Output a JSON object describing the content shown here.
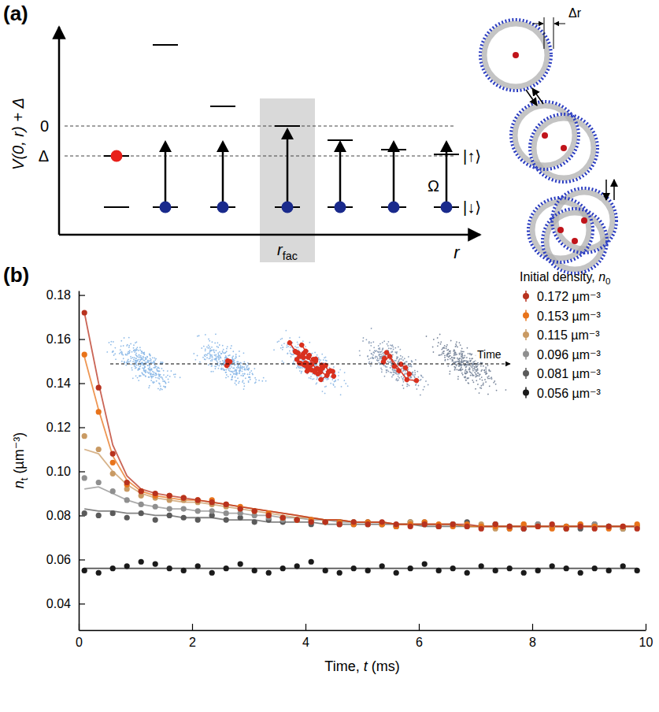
{
  "chart_data": [
    {
      "type": "diagram",
      "label": "(a)",
      "y_label": "V(0, r) + Δ",
      "x_label": "r",
      "level_labels": [
        "0",
        "Δ"
      ],
      "facilitation_label": {
        "base": "r",
        "sub": "fac"
      },
      "coupling_label": "Ω",
      "state_labels": [
        "|↑⟩",
        "|↓⟩"
      ],
      "shell_width_label": "Δr"
    },
    {
      "type": "scatter",
      "label": "(b)",
      "x_label": {
        "head": "Time, ",
        "base": "t",
        "tail": " (ms)"
      },
      "y_label": {
        "base": "n",
        "sub": "t",
        "tail": " (µm⁻³)"
      },
      "legend_title": {
        "head": "Initial density, ",
        "base": "n",
        "sub": "0"
      },
      "inset_label": "Time",
      "xlim": [
        0,
        10
      ],
      "xticks": [
        0,
        2,
        4,
        6,
        8,
        10
      ],
      "ylim": [
        0.028,
        0.182
      ],
      "yticks": [
        0.04,
        0.06,
        0.08,
        {
          "value": 0.1,
          "label": "0.10"
        },
        0.12,
        0.14,
        0.16,
        0.18
      ],
      "grid": false,
      "legend": "top-right",
      "marker": "circle",
      "x": [
        0.1,
        0.35,
        0.6,
        0.85,
        1.1,
        1.35,
        1.6,
        1.85,
        2.1,
        2.35,
        2.6,
        2.85,
        3.1,
        3.35,
        3.6,
        3.85,
        4.1,
        4.35,
        4.6,
        4.85,
        5.1,
        5.35,
        5.6,
        5.85,
        6.1,
        6.35,
        6.6,
        6.85,
        7.1,
        7.35,
        7.6,
        7.85,
        8.1,
        8.35,
        8.6,
        8.85,
        9.1,
        9.35,
        9.6,
        9.85
      ],
      "series": [
        {
          "name": "0.172 µm⁻³",
          "color": "#b8321e",
          "values": [
            0.172,
            0.138,
            0.108,
            0.095,
            0.091,
            0.09,
            0.089,
            0.088,
            0.087,
            0.086,
            0.085,
            0.083,
            0.082,
            0.08,
            0.079,
            0.078,
            0.077,
            0.077,
            0.076,
            0.077,
            0.076,
            0.077,
            0.076,
            0.075,
            0.076,
            0.075,
            0.076,
            0.075,
            0.074,
            0.076,
            0.075,
            0.074,
            0.075,
            0.076,
            0.074,
            0.075,
            0.074,
            0.075,
            0.075,
            0.074
          ],
          "fit": [
            0.172,
            0.14,
            0.112,
            0.098,
            0.092,
            0.09,
            0.089,
            0.088,
            0.087,
            0.086,
            0.085,
            0.084,
            0.083,
            0.082,
            0.081,
            0.08,
            0.079,
            0.078,
            0.078,
            0.077,
            0.077,
            0.077,
            0.076,
            0.076,
            0.076,
            0.076,
            0.076,
            0.076,
            0.075,
            0.075,
            0.075,
            0.075,
            0.075,
            0.075,
            0.075,
            0.075,
            0.075,
            0.075,
            0.075,
            0.075
          ]
        },
        {
          "name": "0.153 µm⁻³",
          "color": "#e8731a",
          "values": [
            0.153,
            0.127,
            0.104,
            0.094,
            0.091,
            0.089,
            0.089,
            0.088,
            0.087,
            0.087,
            0.085,
            0.084,
            0.082,
            0.081,
            0.079,
            0.078,
            0.078,
            0.077,
            0.077,
            0.076,
            0.077,
            0.076,
            0.075,
            0.076,
            0.077,
            0.076,
            0.075,
            0.076,
            0.075,
            0.075,
            0.074,
            0.076,
            0.075,
            0.074,
            0.075,
            0.076,
            0.075,
            0.074,
            0.075,
            0.076
          ],
          "fit": [
            0.152,
            0.128,
            0.107,
            0.096,
            0.091,
            0.089,
            0.088,
            0.087,
            0.087,
            0.086,
            0.085,
            0.084,
            0.083,
            0.082,
            0.081,
            0.08,
            0.079,
            0.078,
            0.078,
            0.077,
            0.077,
            0.077,
            0.076,
            0.076,
            0.076,
            0.076,
            0.076,
            0.075,
            0.075,
            0.075,
            0.075,
            0.075,
            0.075,
            0.075,
            0.075,
            0.075,
            0.075,
            0.075,
            0.075,
            0.075
          ]
        },
        {
          "name": "0.115 µm⁻³",
          "color": "#c99a63",
          "values": [
            0.116,
            0.11,
            0.099,
            0.092,
            0.089,
            0.088,
            0.087,
            0.087,
            0.086,
            0.085,
            0.084,
            0.083,
            0.082,
            0.08,
            0.079,
            0.078,
            0.078,
            0.077,
            0.076,
            0.077,
            0.076,
            0.076,
            0.075,
            0.077,
            0.076,
            0.075,
            0.076,
            0.075,
            0.076,
            0.074,
            0.075,
            0.076,
            0.075,
            0.075,
            0.074,
            0.076,
            0.075,
            0.075,
            0.074,
            0.075
          ],
          "fit": [
            0.11,
            0.108,
            0.1,
            0.094,
            0.09,
            0.088,
            0.087,
            0.086,
            0.086,
            0.085,
            0.084,
            0.083,
            0.082,
            0.081,
            0.08,
            0.079,
            0.079,
            0.078,
            0.078,
            0.077,
            0.077,
            0.077,
            0.076,
            0.076,
            0.076,
            0.076,
            0.076,
            0.075,
            0.075,
            0.075,
            0.075,
            0.075,
            0.075,
            0.075,
            0.075,
            0.075,
            0.075,
            0.075,
            0.075,
            0.075
          ]
        },
        {
          "name": "0.096 µm⁻³",
          "color": "#8f8f8f",
          "values": [
            0.097,
            0.095,
            0.091,
            0.087,
            0.085,
            0.084,
            0.083,
            0.083,
            0.082,
            0.082,
            0.081,
            0.081,
            0.08,
            0.079,
            0.078,
            0.078,
            0.077,
            0.077,
            0.076,
            0.077,
            0.076,
            0.076,
            0.075,
            0.076,
            0.077,
            0.075,
            0.076,
            0.075,
            0.075,
            0.076,
            0.074,
            0.075,
            0.076,
            0.075,
            0.074,
            0.075,
            0.076,
            0.075,
            0.074,
            0.075
          ],
          "fit": [
            0.092,
            0.093,
            0.09,
            0.087,
            0.085,
            0.084,
            0.083,
            0.083,
            0.082,
            0.082,
            0.081,
            0.081,
            0.08,
            0.08,
            0.079,
            0.079,
            0.078,
            0.078,
            0.077,
            0.077,
            0.077,
            0.077,
            0.076,
            0.076,
            0.076,
            0.076,
            0.076,
            0.075,
            0.075,
            0.075,
            0.075,
            0.075,
            0.075,
            0.075,
            0.075,
            0.075,
            0.075,
            0.075,
            0.075,
            0.075
          ]
        },
        {
          "name": "0.081 µm⁻³",
          "color": "#5a5a5a",
          "values": [
            0.081,
            0.08,
            0.081,
            0.079,
            0.081,
            0.078,
            0.08,
            0.079,
            0.078,
            0.08,
            0.078,
            0.079,
            0.077,
            0.078,
            0.077,
            0.078,
            0.076,
            0.077,
            0.077,
            0.076,
            0.077,
            0.076,
            0.075,
            0.077,
            0.076,
            0.075,
            0.076,
            0.077,
            0.075,
            0.076,
            0.075,
            0.074,
            0.076,
            0.075,
            0.075,
            0.074,
            0.076,
            0.075,
            0.074,
            0.075
          ],
          "fit": [
            0.083,
            0.082,
            0.082,
            0.081,
            0.081,
            0.08,
            0.08,
            0.079,
            0.079,
            0.079,
            0.078,
            0.078,
            0.078,
            0.077,
            0.077,
            0.077,
            0.077,
            0.076,
            0.076,
            0.076,
            0.076,
            0.076,
            0.076,
            0.076,
            0.075,
            0.075,
            0.075,
            0.075,
            0.075,
            0.075,
            0.075,
            0.075,
            0.075,
            0.075,
            0.075,
            0.075,
            0.075,
            0.075,
            0.075,
            0.075
          ]
        },
        {
          "name": "0.056 µm⁻³",
          "color": "#1a1a1a",
          "values": [
            0.055,
            0.054,
            0.056,
            0.057,
            0.059,
            0.058,
            0.056,
            0.055,
            0.057,
            0.054,
            0.056,
            0.058,
            0.055,
            0.054,
            0.056,
            0.057,
            0.059,
            0.055,
            0.054,
            0.056,
            0.055,
            0.057,
            0.054,
            0.056,
            0.058,
            0.055,
            0.056,
            0.054,
            0.057,
            0.055,
            0.056,
            0.054,
            0.055,
            0.057,
            0.056,
            0.054,
            0.056,
            0.055,
            0.057,
            0.055
          ],
          "fit": [
            0.056,
            0.056,
            0.056,
            0.056,
            0.056,
            0.056,
            0.056,
            0.056,
            0.056,
            0.056,
            0.056,
            0.056,
            0.056,
            0.056,
            0.056,
            0.056,
            0.056,
            0.056,
            0.056,
            0.056,
            0.056,
            0.056,
            0.056,
            0.056,
            0.056,
            0.056,
            0.056,
            0.056,
            0.056,
            0.056,
            0.056,
            0.056,
            0.056,
            0.056,
            0.056,
            0.056,
            0.056,
            0.056,
            0.056,
            0.056
          ]
        }
      ]
    }
  ]
}
